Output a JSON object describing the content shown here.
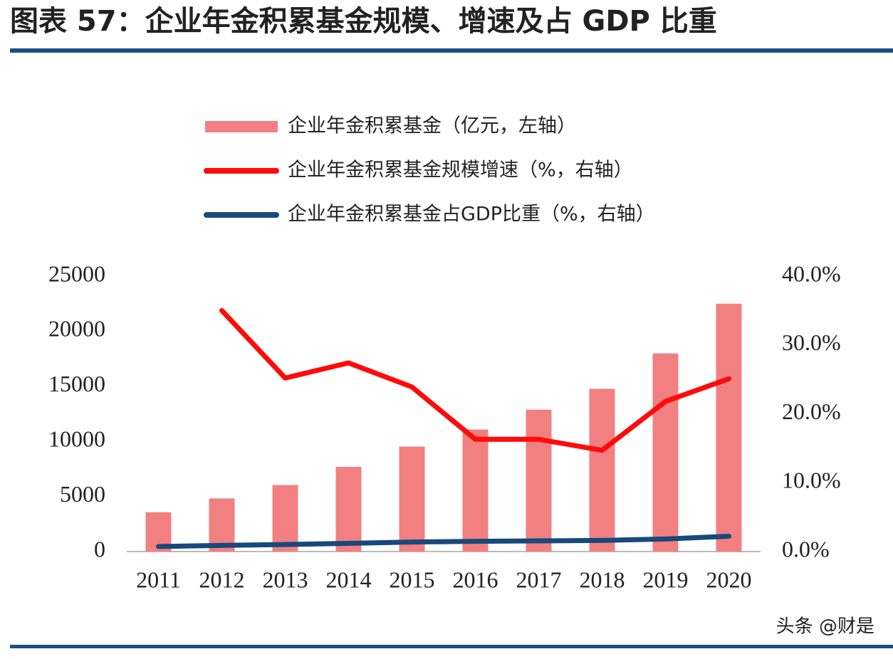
{
  "chart_data": {
    "type": "bar",
    "title": "图表 57：企业年金积累基金规模、增速及占 GDP 比重",
    "categories": [
      "2011",
      "2012",
      "2013",
      "2014",
      "2015",
      "2016",
      "2017",
      "2018",
      "2019",
      "2020"
    ],
    "series": [
      {
        "name": "企业年金积累基金（亿元，左轴）",
        "type": "bar",
        "color": "#f28080",
        "values": [
          3570,
          4821,
          6035,
          7689,
          9526,
          11075,
          12880,
          14770,
          17985,
          22497
        ]
      },
      {
        "name": "企业年金积累基金规模增速（%，右轴）",
        "type": "line",
        "axis": "y2",
        "color": "#ff0a0a",
        "values": [
          null,
          35.0,
          25.2,
          27.4,
          23.9,
          16.3,
          16.3,
          14.7,
          21.8,
          25.1
        ]
      },
      {
        "name": "企业年金积累基金占GDP比重（%，右轴）",
        "type": "line",
        "axis": "y2",
        "color": "#17497c",
        "values": [
          0.73,
          0.89,
          1.02,
          1.19,
          1.38,
          1.48,
          1.55,
          1.61,
          1.82,
          2.22
        ]
      }
    ],
    "ylim": [
      0,
      25000
    ],
    "yticks": [
      0,
      5000,
      10000,
      15000,
      20000,
      25000
    ],
    "y2lim": [
      0,
      40
    ],
    "y2ticks": [
      {
        "value": 0,
        "label": "0.0%"
      },
      {
        "value": 10,
        "label": "10.0%"
      },
      {
        "value": 20,
        "label": "20.0%"
      },
      {
        "value": 30,
        "label": "30.0%"
      },
      {
        "value": 40,
        "label": "40.0%"
      }
    ],
    "grid": false,
    "source": "头条 @财是"
  }
}
